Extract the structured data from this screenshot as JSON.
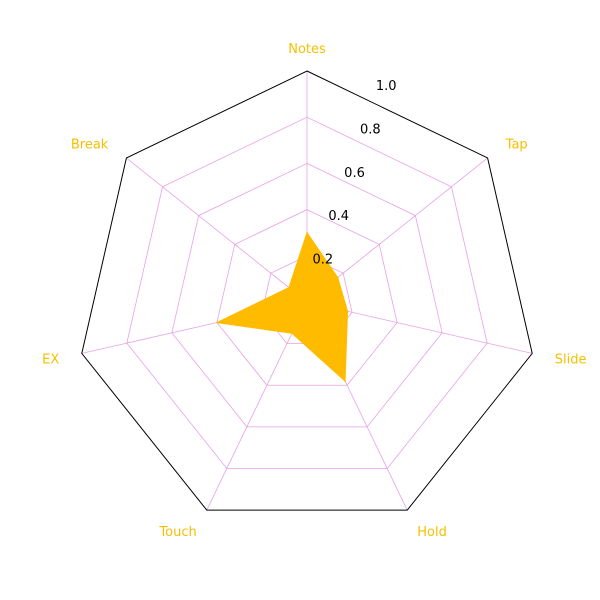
{
  "chart_data": {
    "type": "radar",
    "title": "",
    "categories": [
      "Notes",
      "Tap",
      "Slide",
      "Hold",
      "Touch",
      "EX",
      "Break"
    ],
    "values": [
      0.3,
      0.17,
      0.18,
      0.38,
      0.15,
      0.4,
      0.1
    ],
    "rlim": [
      0,
      1.0
    ],
    "rticks": [
      0.2,
      0.4,
      0.6,
      0.8,
      1.0
    ],
    "rtick_labels": [
      "0.2",
      "0.4",
      "0.6",
      "0.8",
      "1.0"
    ],
    "grid": true,
    "colors": {
      "fill": "#ffbb00",
      "grid": "#e8a0e8",
      "frame": "#000000",
      "category_label": "#f5c000"
    }
  }
}
